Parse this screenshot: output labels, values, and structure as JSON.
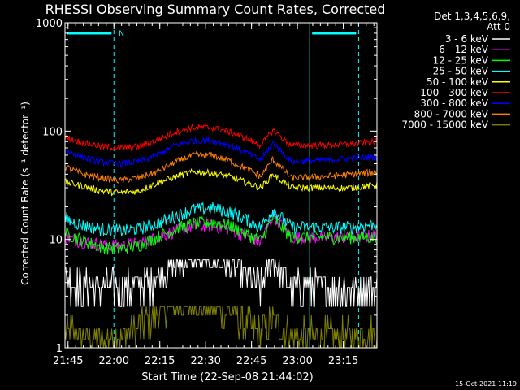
{
  "chart_data": {
    "type": "line",
    "title": "RHESSI Observing Summary Count Rates, Corrected",
    "xlabel": "Start Time (22-Sep-08 21:44:02)",
    "ylabel": "Corrected Count Rate (s⁻¹ detector⁻¹)",
    "yscale": "log",
    "ylim": [
      1,
      1000
    ],
    "xlim_minutes_after_21_44_02": [
      0,
      102
    ],
    "x_tick_labels": [
      "21:45",
      "22:00",
      "22:15",
      "22:30",
      "22:45",
      "23:00",
      "23:15"
    ],
    "x_tick_minutes": [
      1,
      16,
      31,
      46,
      61,
      76,
      91
    ],
    "y_tick_labels": [
      "1",
      "10",
      "100",
      "1000"
    ],
    "y_tick_values": [
      1,
      10,
      100,
      1000
    ],
    "legend_header": [
      "Det 1,3,4,5,6,9,",
      "Att 0"
    ],
    "legend_position": "right",
    "timestamp": "15-Oct-2021 11:19",
    "annotations": {
      "night_bar_label": "N",
      "night_intervals_minutes": [
        [
          0,
          16
        ],
        [
          80,
          96
        ]
      ],
      "saa_boundaries_minutes": [
        16,
        96
      ],
      "vertical_line_minutes": [
        80
      ]
    },
    "series": [
      {
        "name": "3 - 6 keV",
        "color": "#ffffff",
        "values": [
          4.5,
          3.6,
          3.6,
          3.6,
          3.6,
          4.5,
          5.5,
          6.5,
          6.5,
          5.5,
          4.5,
          3.6,
          6.5,
          3.6,
          3.6,
          3.6,
          3.6
        ]
      },
      {
        "name": "6 - 12 keV",
        "color": "#ff00ff",
        "values": [
          10.5,
          9.5,
          9,
          8.8,
          9.2,
          10.5,
          12,
          13.2,
          13.5,
          12.5,
          10.5,
          9.5,
          17,
          10.5,
          10.5,
          10.5,
          11
        ]
      },
      {
        "name": "12 - 25 keV",
        "color": "#00ff00",
        "values": [
          11.5,
          9.8,
          8.5,
          8.2,
          8.8,
          10.5,
          12.5,
          14,
          14.5,
          13.5,
          11,
          9.8,
          16,
          10.5,
          10.5,
          10.5,
          10.5
        ]
      },
      {
        "name": "25 - 50 keV",
        "color": "#00ffff",
        "values": [
          15.5,
          13.5,
          12.5,
          12,
          12.5,
          14,
          16.5,
          19,
          19.5,
          18,
          15,
          13,
          19,
          13,
          13,
          13,
          14
        ]
      },
      {
        "name": "50 - 100 keV",
        "color": "#ffff00",
        "values": [
          34,
          31,
          28,
          27,
          28,
          33,
          38,
          42,
          41,
          38,
          33,
          30,
          40,
          30,
          30,
          30,
          32
        ]
      },
      {
        "name": "100 - 300 keV",
        "color": "#ff0000",
        "values": [
          88,
          78,
          72,
          70,
          72,
          82,
          98,
          108,
          108,
          98,
          84,
          74,
          102,
          74,
          74,
          76,
          80
        ]
      },
      {
        "name": "300 - 800 keV",
        "color": "#0000ff",
        "values": [
          67,
          57,
          52,
          50,
          52,
          60,
          74,
          82,
          82,
          74,
          62,
          54,
          78,
          52,
          54,
          56,
          58
        ]
      },
      {
        "name": "800 - 7000 keV",
        "color": "#ff8000",
        "values": [
          47,
          40,
          37,
          35,
          37,
          42,
          52,
          60,
          60,
          53,
          44,
          38,
          55,
          37,
          38,
          40,
          42
        ]
      },
      {
        "name": "7000 - 15000 keV",
        "color": "#808000",
        "values": [
          1.5,
          1.3,
          1.2,
          1.3,
          1.5,
          2,
          2.4,
          2.4,
          2.3,
          2.1,
          1.6,
          1.4,
          1.8,
          1.3,
          1.3,
          1.3,
          1.4
        ]
      }
    ],
    "x_minutes": [
      0,
      6,
      12,
      18,
      24,
      30,
      36,
      42,
      48,
      54,
      60,
      64,
      68,
      74,
      84,
      94,
      102
    ]
  }
}
